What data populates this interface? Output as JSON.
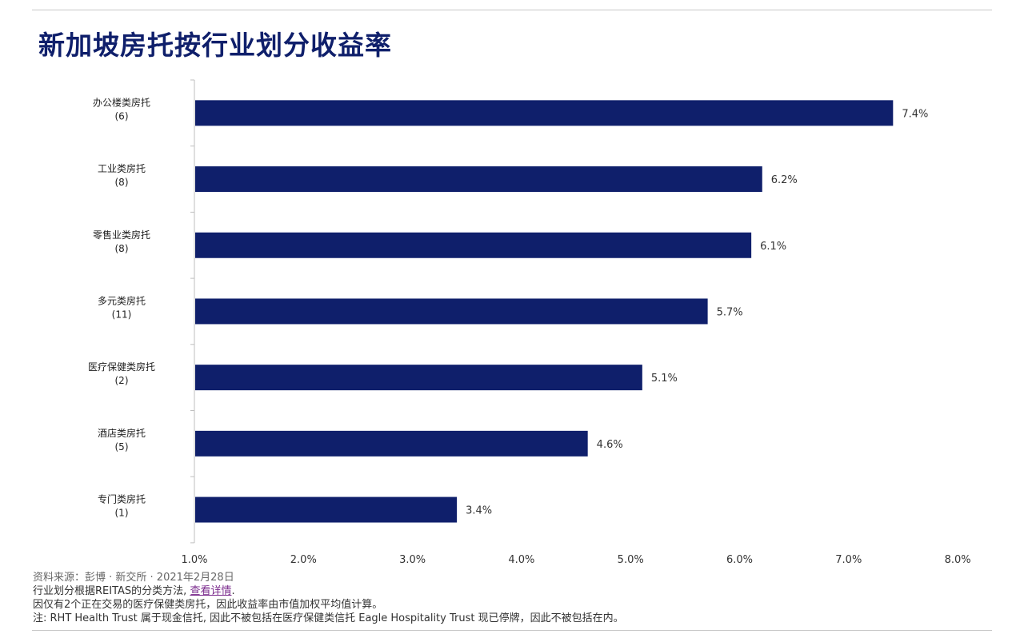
{
  "title": "新加坡房托按行业划分收益率",
  "chart_data": {
    "type": "bar",
    "orientation": "horizontal",
    "categories": [
      {
        "name": "办公楼类房托",
        "count": "(6)"
      },
      {
        "name": "工业类房托",
        "count": "(8)"
      },
      {
        "name": "零售业类房托",
        "count": "(8)"
      },
      {
        "name": "多元类房托",
        "count": "(11)"
      },
      {
        "name": "医疗保健类房托",
        "count": "(2)"
      },
      {
        "name": "酒店类房托",
        "count": "(5)"
      },
      {
        "name": "专门类房托",
        "count": "(1)"
      }
    ],
    "values": [
      7.4,
      6.2,
      6.1,
      5.7,
      5.1,
      4.6,
      3.4
    ],
    "value_labels": [
      "7.4%",
      "6.2%",
      "6.1%",
      "5.7%",
      "5.1%",
      "4.6%",
      "3.4%"
    ],
    "xlim": [
      1.0,
      8.0
    ],
    "x_ticks": [
      1.0,
      2.0,
      3.0,
      4.0,
      5.0,
      6.0,
      7.0,
      8.0
    ],
    "x_tick_labels": [
      "1.0%",
      "2.0%",
      "3.0%",
      "4.0%",
      "5.0%",
      "6.0%",
      "7.0%",
      "8.0%"
    ],
    "bar_color": "#0f1f6b",
    "grid": false,
    "legend": "none"
  },
  "footnotes": {
    "source": "资料来源：彭博 · 新交所 · 2021年2月28日",
    "method_prefix": "行业划分根据REITAS的分类方法, ",
    "method_link": "查看详情",
    "method_suffix": ".",
    "healthcare_note": "因仅有2个正在交易的医疗保健类房托，因此收益率由市值加权平均值计算。",
    "note": "注: RHT Health Trust 属于现金信托, 因此不被包括在医疗保健类信托 Eagle Hospitality Trust 现已停牌，因此不被包括在内。"
  },
  "colors": {
    "title": "#0f1f6b",
    "bar": "#0f1f6b",
    "link": "#7a2a8c",
    "axis": "#bfbfbf"
  }
}
